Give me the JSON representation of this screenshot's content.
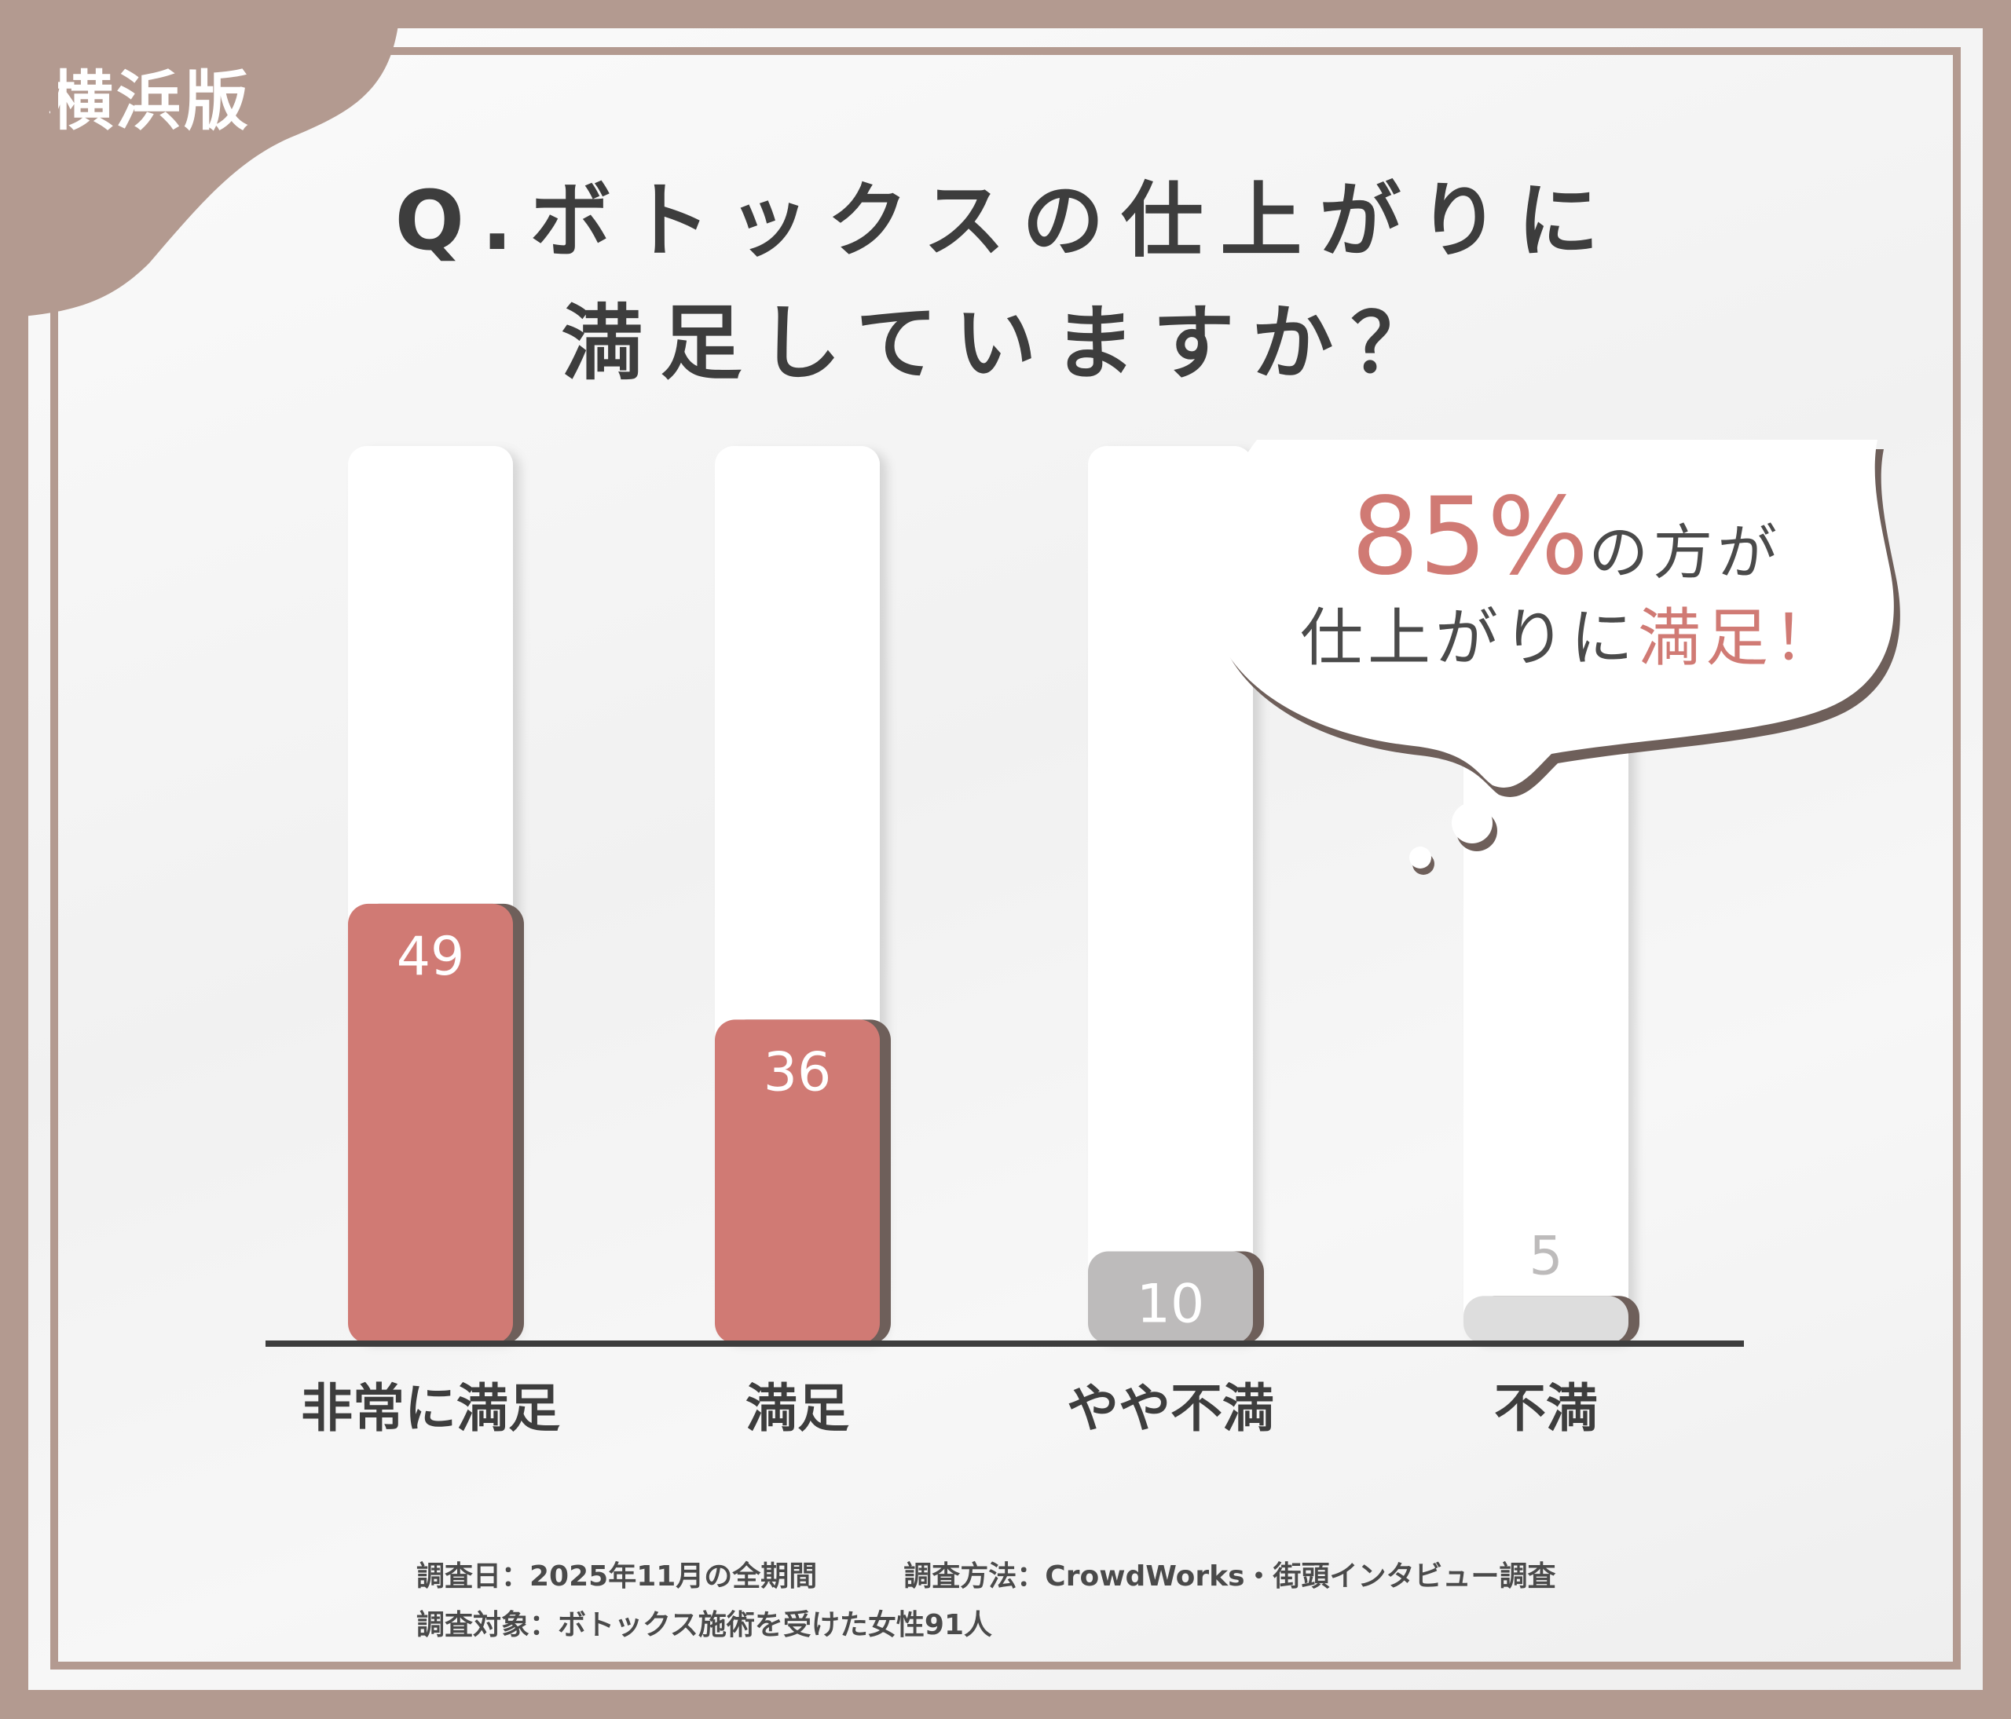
{
  "badge": {
    "city": "横浜版"
  },
  "title": {
    "line1": "Q.ボトックスの仕上がりに",
    "line2": "満足していますか？"
  },
  "callout": {
    "percent": "85%",
    "line1_rest": "の方が",
    "line2_plain": "仕上がりに",
    "line2_highlight": "満足！"
  },
  "chart_data": {
    "type": "bar",
    "title": "Q.ボトックスの仕上がりに満足していますか？",
    "xlabel": "",
    "ylabel": "",
    "categories": [
      "非常に満足",
      "満足",
      "やや不満",
      "不満"
    ],
    "values": [
      49,
      36,
      10,
      5
    ],
    "ylim": [
      0,
      100
    ],
    "grid": false,
    "legend": "none",
    "colors": [
      "#d07a74",
      "#d07a74",
      "#bdbbbb",
      "#dddddd"
    ],
    "label_colors": [
      "#ffffff",
      "#ffffff",
      "#ffffff",
      "#bdbbbb"
    ]
  },
  "footnotes": {
    "date": "調査日：2025年11月の全期間",
    "method": "調査方法：CrowdWorks・街頭インタビュー調査",
    "target": "調査対象：ボトックス施術を受けた女性91人"
  },
  "colors": {
    "frame": "#b39a90",
    "accent": "#d07a74",
    "text": "#3d3d3d"
  }
}
